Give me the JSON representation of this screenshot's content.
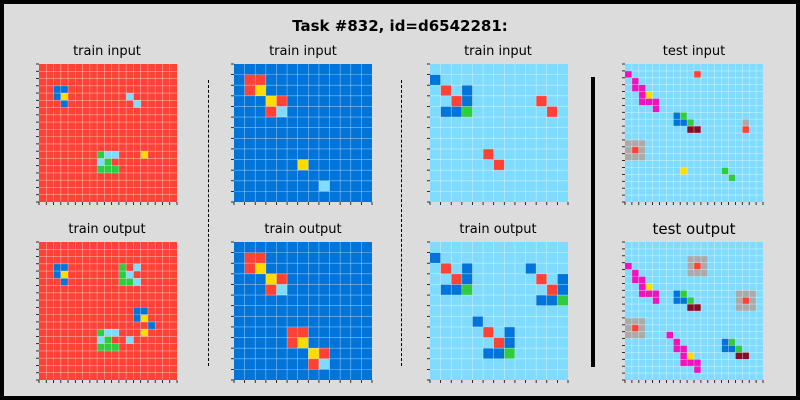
{
  "title": "Task #832, id=d6542281:",
  "colors": {
    "0": "#000000",
    "1": "#0074d9",
    "2": "#ff4136",
    "3": "#2ecc40",
    "4": "#ffdc00",
    "5": "#aaaaaa",
    "6": "#f012be",
    "7": "#ff851b",
    "8": "#7fdbff",
    "9": "#870c25"
  },
  "panels": [
    {
      "label": "train input",
      "bg": 2,
      "size": 19,
      "cells": [
        [
          3,
          2,
          1
        ],
        [
          3,
          3,
          1
        ],
        [
          4,
          3,
          4
        ],
        [
          4,
          2,
          1
        ],
        [
          5,
          3,
          1
        ],
        [
          4,
          12,
          8
        ],
        [
          5,
          13,
          8
        ],
        [
          12,
          14,
          4
        ],
        [
          12,
          8,
          3
        ],
        [
          12,
          9,
          8
        ],
        [
          12,
          10,
          8
        ],
        [
          13,
          8,
          8
        ],
        [
          13,
          9,
          3
        ],
        [
          14,
          8,
          3
        ],
        [
          14,
          9,
          3
        ],
        [
          14,
          10,
          3
        ]
      ]
    },
    {
      "label": "train input",
      "bg": 1,
      "size": 13,
      "cells": [
        [
          1,
          1,
          2
        ],
        [
          1,
          2,
          2
        ],
        [
          2,
          1,
          2
        ],
        [
          2,
          2,
          4
        ],
        [
          3,
          3,
          4
        ],
        [
          3,
          4,
          2
        ],
        [
          4,
          3,
          2
        ],
        [
          4,
          4,
          8
        ],
        [
          9,
          6,
          4
        ],
        [
          11,
          8,
          8
        ]
      ]
    },
    {
      "label": "train input",
      "bg": 8,
      "size": 13,
      "cells": [
        [
          1,
          0,
          1
        ],
        [
          2,
          1,
          2
        ],
        [
          3,
          2,
          2
        ],
        [
          2,
          3,
          1
        ],
        [
          3,
          3,
          1
        ],
        [
          4,
          1,
          1
        ],
        [
          4,
          2,
          1
        ],
        [
          4,
          3,
          3
        ],
        [
          3,
          10,
          2
        ],
        [
          4,
          11,
          2
        ],
        [
          8,
          5,
          2
        ],
        [
          9,
          6,
          2
        ]
      ]
    },
    {
      "label": "test input",
      "bg": 8,
      "size": 20,
      "cells": [
        [
          1,
          0,
          6
        ],
        [
          2,
          1,
          6
        ],
        [
          3,
          1,
          6
        ],
        [
          3,
          2,
          6
        ],
        [
          4,
          2,
          6
        ],
        [
          4,
          3,
          4
        ],
        [
          5,
          2,
          6
        ],
        [
          5,
          3,
          6
        ],
        [
          5,
          4,
          6
        ],
        [
          6,
          4,
          6
        ],
        [
          1,
          10,
          2
        ],
        [
          7,
          7,
          1
        ],
        [
          8,
          7,
          1
        ],
        [
          7,
          8,
          3
        ],
        [
          8,
          8,
          1
        ],
        [
          9,
          9,
          9
        ],
        [
          8,
          9,
          3
        ],
        [
          9,
          10,
          9
        ],
        [
          8,
          17,
          5
        ],
        [
          9,
          17,
          2
        ],
        [
          11,
          0,
          5
        ],
        [
          11,
          1,
          5
        ],
        [
          11,
          2,
          5
        ],
        [
          12,
          0,
          5
        ],
        [
          12,
          1,
          2
        ],
        [
          12,
          2,
          5
        ],
        [
          13,
          0,
          5
        ],
        [
          13,
          1,
          5
        ],
        [
          13,
          2,
          5
        ],
        [
          15,
          8,
          4
        ],
        [
          15,
          14,
          3
        ],
        [
          16,
          15,
          3
        ]
      ]
    },
    {
      "label": "train output",
      "bg": 2,
      "size": 19,
      "cells": [
        [
          3,
          2,
          1
        ],
        [
          3,
          3,
          1
        ],
        [
          4,
          3,
          4
        ],
        [
          4,
          2,
          1
        ],
        [
          5,
          3,
          1
        ],
        [
          4,
          12,
          8
        ],
        [
          5,
          13,
          8
        ],
        [
          12,
          14,
          4
        ],
        [
          12,
          8,
          3
        ],
        [
          12,
          9,
          8
        ],
        [
          12,
          10,
          8
        ],
        [
          13,
          8,
          8
        ],
        [
          13,
          9,
          3
        ],
        [
          14,
          8,
          3
        ],
        [
          14,
          9,
          3
        ],
        [
          14,
          10,
          3
        ],
        [
          3,
          11,
          3
        ],
        [
          4,
          11,
          3
        ],
        [
          5,
          11,
          3
        ],
        [
          5,
          12,
          3
        ],
        [
          3,
          13,
          8
        ],
        [
          5,
          12,
          3
        ],
        [
          9,
          13,
          1
        ],
        [
          9,
          14,
          1
        ],
        [
          10,
          13,
          1
        ],
        [
          10,
          14,
          4
        ],
        [
          11,
          15,
          1
        ],
        [
          13,
          12,
          8
        ]
      ]
    },
    {
      "label": "train output",
      "bg": 1,
      "size": 13,
      "cells": [
        [
          1,
          1,
          2
        ],
        [
          1,
          2,
          2
        ],
        [
          2,
          1,
          2
        ],
        [
          2,
          2,
          4
        ],
        [
          3,
          3,
          4
        ],
        [
          3,
          4,
          2
        ],
        [
          4,
          3,
          2
        ],
        [
          4,
          4,
          8
        ],
        [
          8,
          5,
          2
        ],
        [
          8,
          6,
          2
        ],
        [
          9,
          5,
          2
        ],
        [
          9,
          6,
          4
        ],
        [
          10,
          7,
          4
        ],
        [
          10,
          8,
          2
        ],
        [
          11,
          7,
          2
        ],
        [
          11,
          8,
          8
        ]
      ]
    },
    {
      "label": "train output",
      "bg": 8,
      "size": 13,
      "cells": [
        [
          1,
          0,
          1
        ],
        [
          2,
          1,
          2
        ],
        [
          3,
          2,
          2
        ],
        [
          2,
          3,
          1
        ],
        [
          3,
          3,
          1
        ],
        [
          4,
          1,
          1
        ],
        [
          4,
          2,
          1
        ],
        [
          4,
          3,
          3
        ],
        [
          2,
          9,
          1
        ],
        [
          3,
          10,
          2
        ],
        [
          4,
          11,
          2
        ],
        [
          3,
          12,
          1
        ],
        [
          4,
          12,
          1
        ],
        [
          5,
          10,
          1
        ],
        [
          5,
          11,
          1
        ],
        [
          5,
          12,
          3
        ],
        [
          7,
          4,
          1
        ],
        [
          8,
          5,
          2
        ],
        [
          9,
          6,
          2
        ],
        [
          8,
          7,
          1
        ],
        [
          9,
          7,
          1
        ],
        [
          10,
          5,
          1
        ],
        [
          10,
          6,
          1
        ],
        [
          10,
          7,
          3
        ]
      ]
    },
    {
      "label": "test output",
      "bg": 8,
      "size": 20,
      "big": true,
      "cells": [
        [
          3,
          0,
          6
        ],
        [
          4,
          1,
          6
        ],
        [
          5,
          1,
          6
        ],
        [
          5,
          2,
          6
        ],
        [
          6,
          2,
          6
        ],
        [
          6,
          3,
          4
        ],
        [
          7,
          2,
          6
        ],
        [
          7,
          3,
          6
        ],
        [
          7,
          4,
          6
        ],
        [
          8,
          4,
          6
        ],
        [
          2,
          9,
          5
        ],
        [
          2,
          10,
          5
        ],
        [
          2,
          11,
          5
        ],
        [
          3,
          9,
          5
        ],
        [
          3,
          10,
          2
        ],
        [
          3,
          11,
          5
        ],
        [
          4,
          9,
          5
        ],
        [
          4,
          10,
          5
        ],
        [
          4,
          11,
          5
        ],
        [
          7,
          7,
          1
        ],
        [
          8,
          7,
          1
        ],
        [
          7,
          8,
          3
        ],
        [
          8,
          8,
          1
        ],
        [
          9,
          9,
          9
        ],
        [
          8,
          9,
          3
        ],
        [
          9,
          10,
          9
        ],
        [
          7,
          16,
          5
        ],
        [
          7,
          17,
          5
        ],
        [
          7,
          18,
          5
        ],
        [
          8,
          16,
          5
        ],
        [
          8,
          17,
          2
        ],
        [
          8,
          18,
          5
        ],
        [
          9,
          16,
          5
        ],
        [
          9,
          17,
          5
        ],
        [
          9,
          18,
          5
        ],
        [
          11,
          0,
          5
        ],
        [
          11,
          1,
          5
        ],
        [
          11,
          2,
          5
        ],
        [
          12,
          0,
          5
        ],
        [
          12,
          1,
          2
        ],
        [
          12,
          2,
          5
        ],
        [
          13,
          0,
          5
        ],
        [
          13,
          1,
          5
        ],
        [
          13,
          2,
          5
        ],
        [
          13,
          6,
          6
        ],
        [
          14,
          7,
          6
        ],
        [
          15,
          7,
          6
        ],
        [
          15,
          8,
          6
        ],
        [
          16,
          8,
          6
        ],
        [
          16,
          9,
          4
        ],
        [
          17,
          8,
          6
        ],
        [
          17,
          9,
          6
        ],
        [
          17,
          10,
          6
        ],
        [
          18,
          10,
          6
        ],
        [
          14,
          14,
          1
        ],
        [
          15,
          14,
          1
        ],
        [
          14,
          15,
          3
        ],
        [
          15,
          15,
          1
        ],
        [
          16,
          16,
          9
        ],
        [
          15,
          16,
          3
        ],
        [
          16,
          17,
          9
        ]
      ]
    }
  ]
}
